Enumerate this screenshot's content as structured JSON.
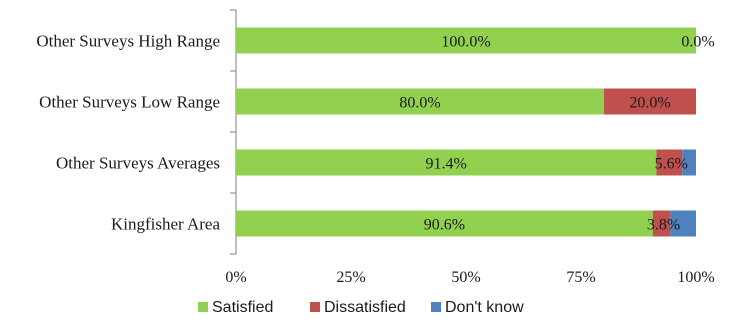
{
  "chart_data": {
    "type": "bar",
    "orientation": "horizontal",
    "stacked": true,
    "categories": [
      "Other Surveys High Range",
      "Other Surveys Low Range",
      "Other Surveys Averages",
      "Kingfisher Area"
    ],
    "series": [
      {
        "name": "Satisfied",
        "color": "#92d050",
        "values": [
          100.0,
          80.0,
          91.4,
          90.6
        ],
        "labels": [
          "100.0%",
          "80.0%",
          "91.4%",
          "90.6%"
        ]
      },
      {
        "name": "Dissatisfied",
        "color": "#c0504d",
        "values": [
          0.0,
          20.0,
          5.6,
          3.8
        ],
        "labels": [
          "0.0%",
          "20.0%",
          "5.6%",
          "3.8%"
        ]
      },
      {
        "name": "Don't know",
        "color": "#4f81bd",
        "values": [
          0.0,
          0.0,
          3.0,
          5.6
        ],
        "labels": [
          "",
          "",
          "",
          ""
        ]
      }
    ],
    "xlim": [
      0,
      100
    ],
    "xticks": [
      "0%",
      "25%",
      "50%",
      "75%",
      "100%"
    ],
    "grid": false,
    "legend_position": "bottom"
  }
}
